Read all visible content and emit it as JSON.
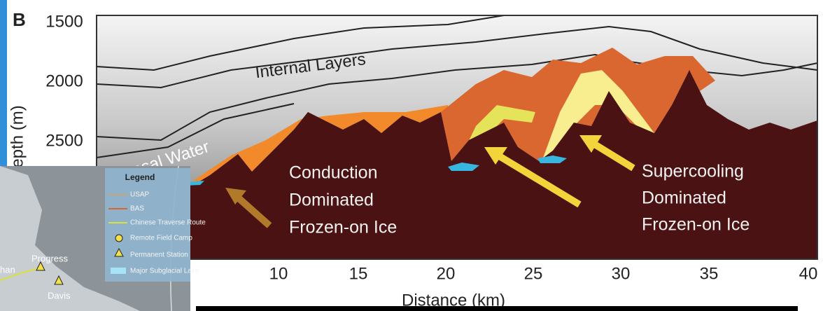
{
  "panel_label": "B",
  "y_axis": {
    "label": "epth (m)",
    "ticks": [
      "1500",
      "2000",
      "2500"
    ]
  },
  "x_axis": {
    "label": "Distance (km)",
    "ticks": [
      "10",
      "15",
      "20",
      "25",
      "30",
      "35",
      "40"
    ]
  },
  "annotations": {
    "internal_layers": "Internal Layers",
    "basal_water": "Basal Water",
    "conduction": [
      "Conduction",
      "Dominated",
      "Frozen-on Ice"
    ],
    "supercooling": [
      "Supercooling",
      "Dominated",
      "Frozen-on Ice"
    ]
  },
  "inset": {
    "legend_title": "Legend",
    "legend_items": [
      "USAP",
      "BAS",
      "Chinese Traverse Route",
      "Remote Field Camp",
      "Permanent Station",
      "Major Subglacial Lake"
    ],
    "places": [
      "Progress",
      "Davis",
      "han"
    ]
  }
}
